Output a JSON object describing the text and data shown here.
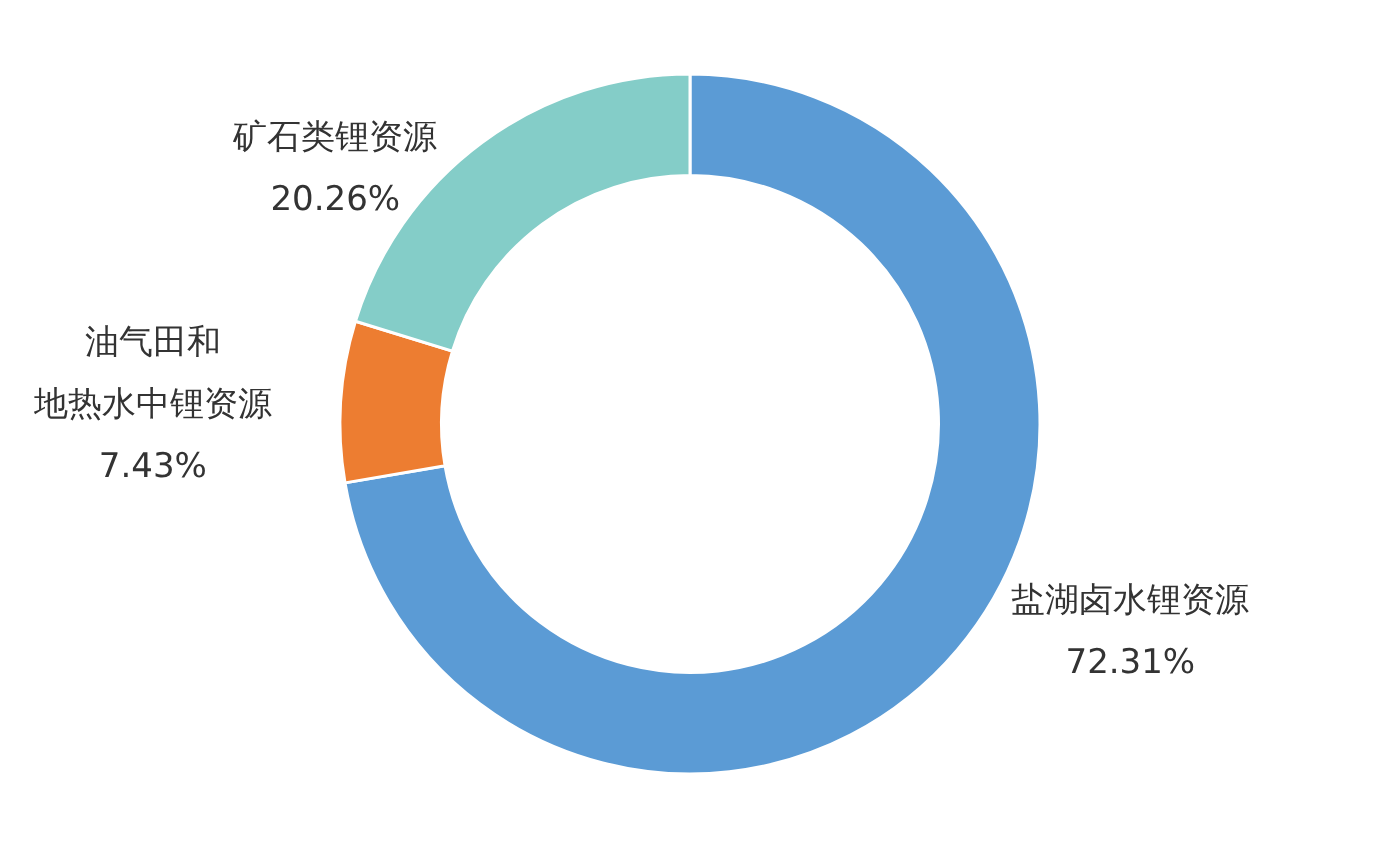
{
  "chart_data": {
    "type": "donut",
    "categories": [
      "盐湖卤水锂资源",
      "油气田和地热水中锂资源",
      "矿石类锂资源"
    ],
    "values": [
      72.31,
      7.43,
      20.26
    ],
    "colors": [
      "#5b9bd5",
      "#ed7d31",
      "#84cdc8"
    ],
    "value_labels": [
      "72.31%",
      "7.43%",
      "20.26%"
    ]
  }
}
